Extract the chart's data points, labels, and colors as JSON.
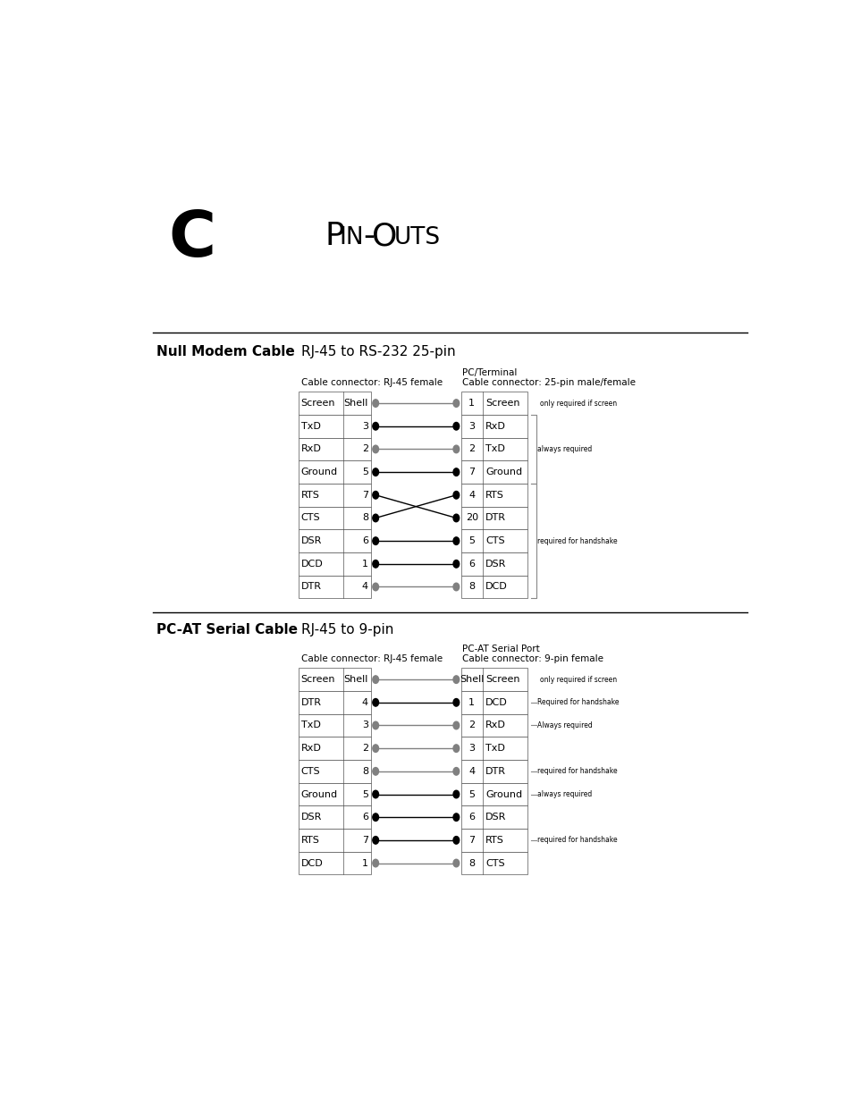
{
  "title_letter": "C",
  "title_text": "Pin-Outs",
  "section1_title": "Null Modem Cable",
  "section1_subtitle": "RJ-45 to RS-232 25-pin",
  "section2_title": "PC-AT Serial Cable",
  "section2_subtitle": "RJ-45 to 9-pin",
  "null_modem": {
    "left_header1": "Cable connector: RJ-45 female",
    "right_header1": "PC/Terminal",
    "right_header2": "Cable connector: 25-pin male/female",
    "left_rows": [
      [
        "Screen",
        "Shell"
      ],
      [
        "TxD",
        "3"
      ],
      [
        "RxD",
        "2"
      ],
      [
        "Ground",
        "5"
      ],
      [
        "RTS",
        "7"
      ],
      [
        "CTS",
        "8"
      ],
      [
        "DSR",
        "6"
      ],
      [
        "DCD",
        "1"
      ],
      [
        "DTR",
        "4"
      ]
    ],
    "right_rows": [
      [
        "1",
        "Screen"
      ],
      [
        "3",
        "RxD"
      ],
      [
        "2",
        "TxD"
      ],
      [
        "7",
        "Ground"
      ],
      [
        "4",
        "RTS"
      ],
      [
        "20",
        "DTR"
      ],
      [
        "5",
        "CTS"
      ],
      [
        "6",
        "DSR"
      ],
      [
        "8",
        "DCD"
      ]
    ],
    "connections": [
      [
        0,
        0,
        "gray"
      ],
      [
        1,
        1,
        "black"
      ],
      [
        2,
        2,
        "gray"
      ],
      [
        3,
        3,
        "black"
      ],
      [
        4,
        5,
        "black"
      ],
      [
        5,
        4,
        "black"
      ],
      [
        6,
        6,
        "black"
      ],
      [
        7,
        7,
        "black"
      ],
      [
        8,
        8,
        "gray"
      ]
    ]
  },
  "pc_at": {
    "left_header1": "Cable connector: RJ-45 female",
    "right_header1": "PC-AT Serial Port",
    "right_header2": "Cable connector: 9-pin female",
    "left_rows": [
      [
        "Screen",
        "Shell"
      ],
      [
        "DTR",
        "4"
      ],
      [
        "TxD",
        "3"
      ],
      [
        "RxD",
        "2"
      ],
      [
        "CTS",
        "8"
      ],
      [
        "Ground",
        "5"
      ],
      [
        "DSR",
        "6"
      ],
      [
        "RTS",
        "7"
      ],
      [
        "DCD",
        "1"
      ]
    ],
    "right_rows": [
      [
        "Shell",
        "Screen"
      ],
      [
        "1",
        "DCD"
      ],
      [
        "2",
        "RxD"
      ],
      [
        "3",
        "TxD"
      ],
      [
        "4",
        "DTR"
      ],
      [
        "5",
        "Ground"
      ],
      [
        "6",
        "DSR"
      ],
      [
        "7",
        "RTS"
      ],
      [
        "8",
        "CTS"
      ]
    ],
    "connections": [
      [
        0,
        0,
        "gray"
      ],
      [
        1,
        1,
        "black"
      ],
      [
        2,
        2,
        "gray"
      ],
      [
        3,
        3,
        "gray"
      ],
      [
        4,
        4,
        "gray"
      ],
      [
        5,
        5,
        "black"
      ],
      [
        6,
        6,
        "black"
      ],
      [
        7,
        7,
        "black"
      ],
      [
        8,
        8,
        "gray"
      ]
    ]
  },
  "bg_color": "#ffffff",
  "text_color": "#000000"
}
